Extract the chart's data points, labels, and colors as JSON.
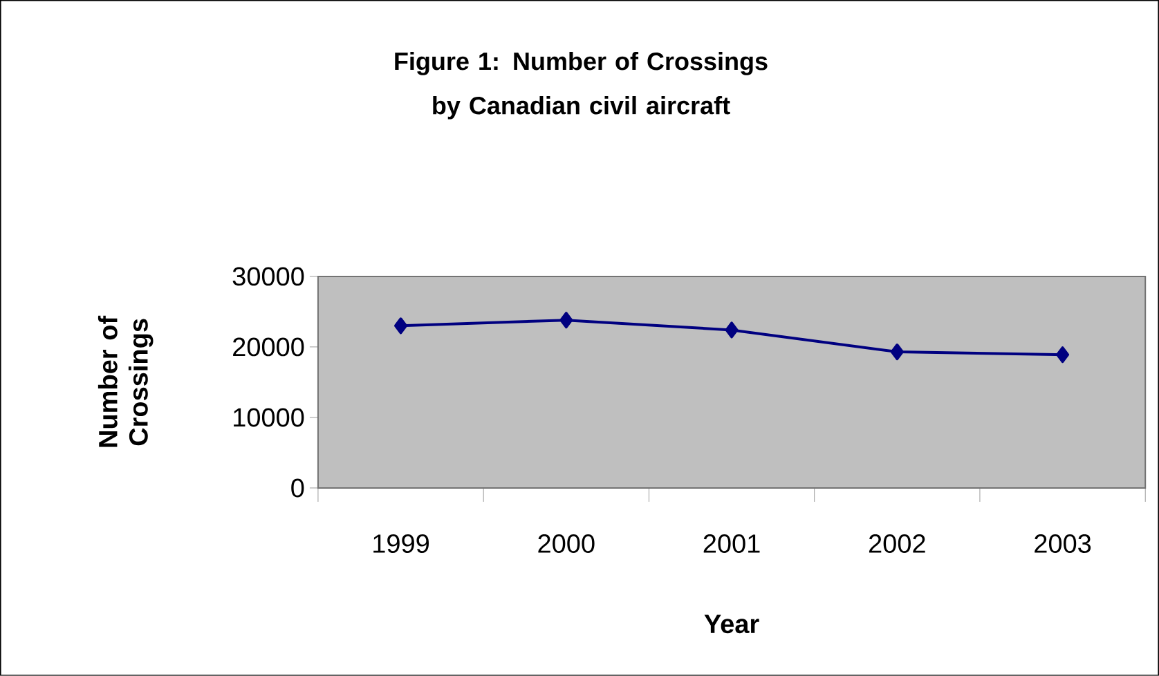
{
  "chart_data": {
    "type": "line",
    "title": "Figure 1: Number of Crossings by Canadian civil aircraft",
    "xlabel": "Year",
    "ylabel": "Number of Crossings",
    "categories": [
      "1999",
      "2000",
      "2001",
      "2002",
      "2003"
    ],
    "series": [
      {
        "color": "#000080",
        "values": [
          23000,
          23800,
          22400,
          19300,
          18900
        ]
      }
    ],
    "ylim": [
      0,
      30000
    ],
    "yticks": [
      0,
      10000,
      20000,
      30000
    ],
    "marker": "diamond",
    "line_style": "solid"
  }
}
